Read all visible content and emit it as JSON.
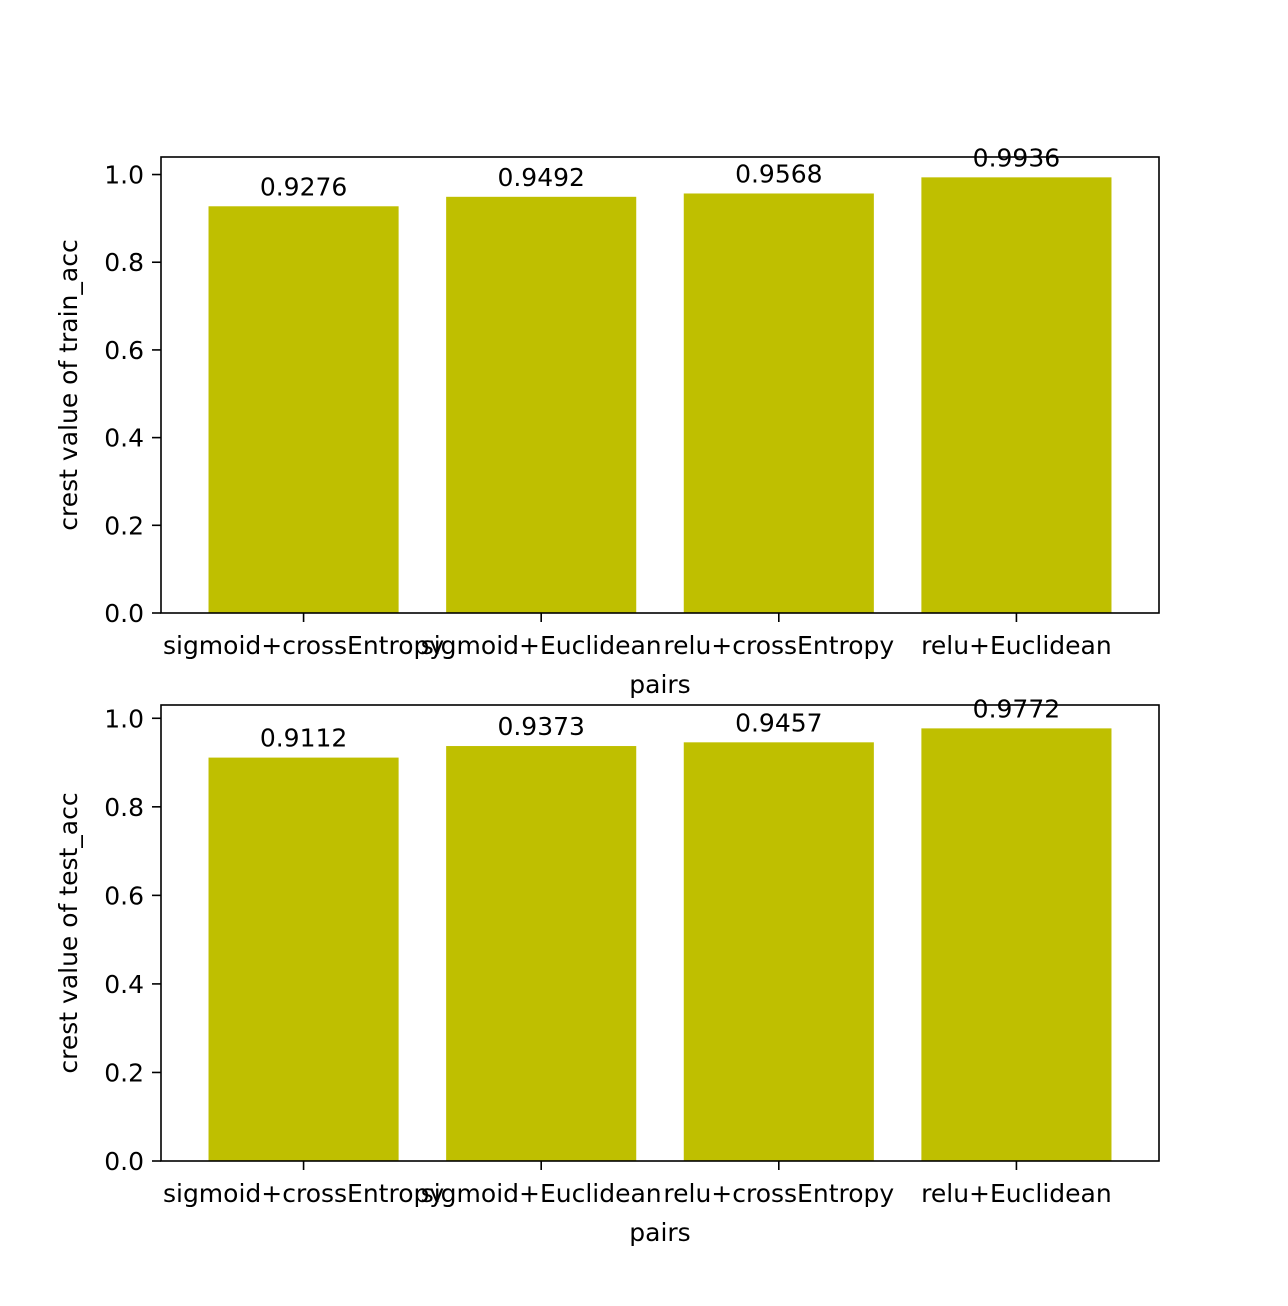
{
  "bar_color": "#bfbf00",
  "chart_data": [
    {
      "type": "bar",
      "categories": [
        "sigmoid+crossEntropy",
        "sigmoid+Euclidean",
        "relu+crossEntropy",
        "relu+Euclidean"
      ],
      "values": [
        0.9276,
        0.9492,
        0.9568,
        0.9936
      ],
      "value_labels": [
        "0.9276",
        "0.9492",
        "0.9568",
        "0.9936"
      ],
      "xlabel": "pairs",
      "ylabel": "crest value of train_acc",
      "ylim": [
        0,
        1.04
      ],
      "yticks": [
        "0.0",
        "0.2",
        "0.4",
        "0.6",
        "0.8",
        "1.0"
      ],
      "grid": false
    },
    {
      "type": "bar",
      "categories": [
        "sigmoid+crossEntropy",
        "sigmoid+Euclidean",
        "relu+crossEntropy",
        "relu+Euclidean"
      ],
      "values": [
        0.9112,
        0.9373,
        0.9457,
        0.9772
      ],
      "value_labels": [
        "0.9112",
        "0.9373",
        "0.9457",
        "0.9772"
      ],
      "xlabel": "pairs",
      "ylabel": "crest value of test_acc",
      "ylim": [
        0,
        1.03
      ],
      "yticks": [
        "0.0",
        "0.2",
        "0.4",
        "0.6",
        "0.8",
        "1.0"
      ],
      "grid": false
    }
  ]
}
